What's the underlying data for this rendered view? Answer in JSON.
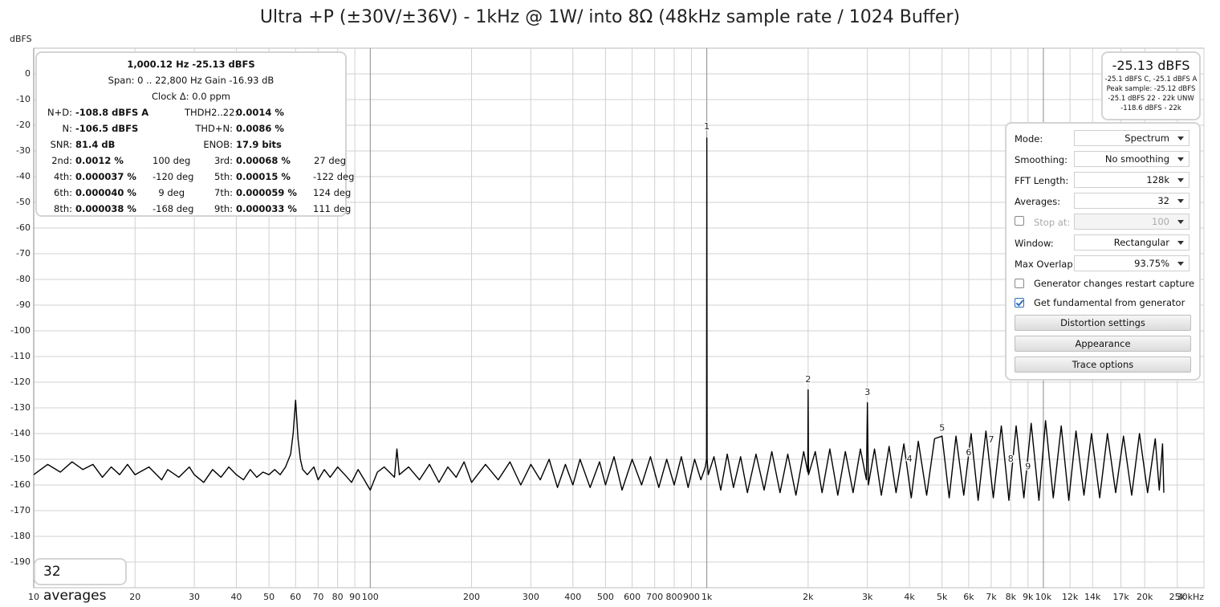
{
  "chart_data": {
    "type": "line",
    "title": "Ultra +P (±30V/±36V) - 1kHz @ 1W/ into 8Ω (48kHz sample rate / 1024 Buffer)",
    "y_label": "dBFS",
    "x_scale": "log",
    "grid": true,
    "color": "#000000",
    "xlim": [
      10,
      30000
    ],
    "ylim": [
      -200,
      10
    ],
    "xticks": [
      10,
      20,
      30,
      40,
      50,
      60,
      70,
      80,
      90,
      100,
      200,
      300,
      400,
      500,
      600,
      700,
      800,
      900,
      {
        "value": 1000,
        "label": "1k"
      },
      {
        "value": 2000,
        "label": "2k"
      },
      {
        "value": 3000,
        "label": "3k"
      },
      {
        "value": 4000,
        "label": "4k"
      },
      {
        "value": 5000,
        "label": "5k"
      },
      {
        "value": 6000,
        "label": "6k"
      },
      {
        "value": 7000,
        "label": "7k"
      },
      {
        "value": 8000,
        "label": "8k"
      },
      {
        "value": 9000,
        "label": "9k"
      },
      {
        "value": 10000,
        "label": "10k"
      },
      {
        "value": 12000,
        "label": "12k"
      },
      {
        "value": 14000,
        "label": "14k"
      },
      {
        "value": 17000,
        "label": "17k"
      },
      {
        "value": 20000,
        "label": "20k"
      },
      {
        "value": 25000,
        "label": "25k"
      },
      {
        "value": 30000,
        "label": "30kHz"
      }
    ],
    "yticks": [
      0,
      -10,
      -20,
      -30,
      -40,
      -50,
      -60,
      -70,
      -80,
      -90,
      -100,
      -110,
      -120,
      -130,
      -140,
      -150,
      -160,
      -170,
      -180,
      -190
    ],
    "x": [
      10,
      11,
      12,
      13,
      14,
      15,
      16,
      17,
      18,
      19,
      20,
      22,
      24,
      25,
      27,
      29,
      30,
      32,
      34,
      36,
      38,
      40,
      42,
      44,
      46,
      48,
      50,
      52,
      54,
      56,
      58,
      59,
      60,
      61,
      62,
      63,
      65,
      68,
      70,
      73,
      76,
      80,
      84,
      88,
      92,
      96,
      100,
      105,
      110,
      118,
      120,
      122,
      130,
      140,
      150,
      160,
      170,
      180,
      190,
      200,
      220,
      240,
      260,
      280,
      300,
      320,
      340,
      360,
      380,
      400,
      420,
      450,
      480,
      500,
      530,
      560,
      600,
      640,
      680,
      720,
      760,
      800,
      840,
      880,
      920,
      960,
      990,
      998,
      1000,
      1002,
      1010,
      1050,
      1100,
      1150,
      1200,
      1260,
      1320,
      1400,
      1480,
      1560,
      1650,
      1740,
      1840,
      1940,
      1995,
      2000,
      2005,
      2100,
      2200,
      2320,
      2450,
      2580,
      2720,
      2860,
      2980,
      3000,
      3020,
      3150,
      3300,
      3480,
      3650,
      3850,
      4050,
      4250,
      4500,
      4750,
      5000,
      5250,
      5500,
      5800,
      6100,
      6400,
      6750,
      7100,
      7500,
      7900,
      8300,
      8750,
      9200,
      9700,
      10150,
      10700,
      11300,
      11900,
      12500,
      13200,
      13900,
      14700,
      15500,
      16400,
      17300,
      18300,
      19300,
      20400,
      21500,
      22100,
      22600,
      22800
    ],
    "values": [
      -156,
      -152,
      -155,
      -151,
      -154,
      -152,
      -157,
      -153,
      -156,
      -152,
      -156,
      -153,
      -158,
      -154,
      -157,
      -153,
      -156,
      -159,
      -154,
      -157,
      -153,
      -156,
      -158,
      -154,
      -157,
      -155,
      -156,
      -154,
      -156,
      -153,
      -148,
      -140,
      -127,
      -142,
      -150,
      -154,
      -156,
      -153,
      -158,
      -154,
      -157,
      -153,
      -156,
      -159,
      -154,
      -158,
      -162,
      -155,
      -153,
      -157,
      -146,
      -156,
      -153,
      -158,
      -152,
      -159,
      -153,
      -157,
      -151,
      -159,
      -152,
      -158,
      -151,
      -160,
      -152,
      -158,
      -150,
      -161,
      -152,
      -160,
      -150,
      -161,
      -151,
      -160,
      -149,
      -162,
      -150,
      -160,
      -149,
      -161,
      -150,
      -160,
      -149,
      -161,
      -150,
      -158,
      -153,
      -150,
      -25,
      -150,
      -156,
      -149,
      -162,
      -148,
      -161,
      -149,
      -163,
      -148,
      -162,
      -147,
      -163,
      -148,
      -164,
      -147,
      -155,
      -123,
      -156,
      -147,
      -163,
      -146,
      -164,
      -147,
      -163,
      -146,
      -158,
      -128,
      -160,
      -146,
      -164,
      -145,
      -163,
      -144,
      -165,
      -143,
      -164,
      -142,
      -141,
      -165,
      -141,
      -164,
      -140,
      -166,
      -139,
      -165,
      -137,
      -166,
      -137,
      -165,
      -136,
      -166,
      -135,
      -165,
      -137,
      -166,
      -139,
      -164,
      -140,
      -165,
      -140,
      -163,
      -141,
      -164,
      -140,
      -163,
      -142,
      -162,
      -144,
      -163
    ],
    "harmonic_labels": [
      {
        "label": "1",
        "x": 1000,
        "y": -20.6
      },
      {
        "label": "2",
        "x": 2000,
        "y": -119
      },
      {
        "label": "3",
        "x": 3000,
        "y": -124
      },
      {
        "label": "4",
        "x": 4000,
        "y": -150
      },
      {
        "label": "5",
        "x": 5000,
        "y": -138
      },
      {
        "label": "6",
        "x": 6000,
        "y": -147.5
      },
      {
        "label": "7",
        "x": 7000,
        "y": -142.5
      },
      {
        "label": "8",
        "x": 8000,
        "y": -150
      },
      {
        "label": "9",
        "x": 9000,
        "y": -153
      }
    ]
  },
  "info_panel": {
    "header": [
      "1,000.12 Hz  -25.13 dBFS",
      "Span: 0 .. 22,800 Hz   Gain -16.93 dB",
      "Clock Δ: 0.0 ppm"
    ],
    "metrics": [
      [
        "N+D:",
        "-108.8 dBFS A",
        "THDH2..22:",
        "0.0014 %"
      ],
      [
        "N:",
        "-106.5 dBFS",
        "THD+N:",
        "0.0086 %"
      ],
      [
        "SNR:",
        "81.4 dB",
        "ENOB:",
        "17.9 bits"
      ]
    ],
    "harmonics": [
      [
        "2nd:",
        "0.0012 %",
        "100 deg",
        "3rd:",
        "0.00068 %",
        "27 deg"
      ],
      [
        "4th:",
        "0.000037 %",
        "-120 deg",
        "5th:",
        "0.00015 %",
        "-122 deg"
      ],
      [
        "6th:",
        "0.000040 %",
        "9 deg",
        "7th:",
        "0.000059 %",
        "124 deg"
      ],
      [
        "8th:",
        "0.000038 %",
        "-168 deg",
        "9th:",
        "0.000033 %",
        "111 deg"
      ]
    ]
  },
  "level_panel": {
    "main": "-25.13 dBFS",
    "lines": [
      "-25.1 dBFS C, -25.1 dBFS A",
      "Peak sample: -25.12 dBFS",
      "-25.1 dBFS 22 - 22k UNW",
      "-118.6 dBFS - 22k"
    ]
  },
  "controls": {
    "fields": [
      {
        "label": "Mode:",
        "value": "Spectrum"
      },
      {
        "label": "Smoothing:",
        "value": "No smoothing"
      },
      {
        "label": "FFT Length:",
        "value": "128k"
      },
      {
        "label": "Averages:",
        "value": "32"
      },
      {
        "label": "Stop at:",
        "value": "100",
        "enabled": false
      },
      {
        "label": "Window:",
        "value": "Rectangular"
      },
      {
        "label": "Max Overlap:",
        "value": "93.75%"
      }
    ],
    "checkboxes": [
      {
        "label": "Generator changes restart capture",
        "checked": false
      },
      {
        "label": "Get fundamental from generator",
        "checked": true
      }
    ],
    "buttons": [
      "Distortion settings",
      "Appearance",
      "Trace options"
    ]
  },
  "averages_badge": "32 averages"
}
